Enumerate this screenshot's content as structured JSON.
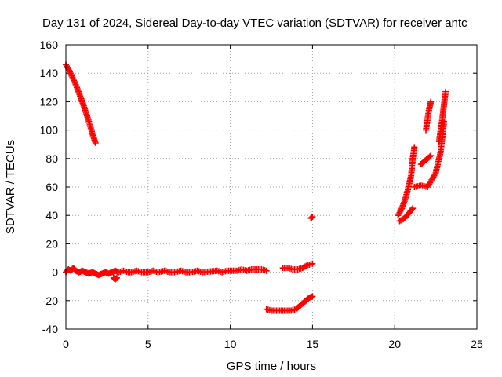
{
  "chart_data": {
    "type": "scatter",
    "title": "Day 131 of 2024, Sidereal Day-to-day VTEC variation (SDTVAR) for receiver antc",
    "xlabel": "GPS time / hours",
    "ylabel": "SDTVAR / TECUs",
    "xlim": [
      0,
      25
    ],
    "ylim": [
      -40,
      160
    ],
    "x_ticks": [
      "0",
      "5",
      "10",
      "15",
      "20",
      "25"
    ],
    "y_ticks": [
      "-40",
      "-20",
      "0",
      "20",
      "40",
      "60",
      "80",
      "100",
      "120",
      "140",
      "160"
    ],
    "grid": true,
    "marker": "plus",
    "color": "#ff0000",
    "series": [
      {
        "segments": [
          {
            "x": [
              0.0,
              0.2,
              0.4,
              0.6,
              0.8,
              1.0,
              1.2,
              1.4,
              1.6,
              1.8
            ],
            "y": [
              146,
              142,
              137,
              132,
              126,
              120,
              113,
              106,
              98,
              91
            ]
          },
          {
            "x": [
              0.0,
              0.15,
              0.3,
              0.45,
              0.6,
              0.8,
              1.0,
              1.2,
              1.4,
              1.6,
              1.8,
              2.0,
              2.2,
              2.4,
              2.6,
              2.8,
              3.0,
              3.2,
              3.5,
              3.8,
              4.0,
              4.3,
              4.6,
              5.0,
              5.3,
              5.6,
              6.0,
              6.3,
              6.6,
              7.0,
              7.3,
              7.6,
              8.0,
              8.3,
              9.2,
              9.5,
              9.8,
              10.1,
              10.4,
              10.7,
              11.0,
              11.3,
              11.6,
              11.9,
              12.2
            ],
            "y": [
              0,
              2,
              1,
              3,
              1,
              0,
              1,
              0,
              -1,
              0,
              -1,
              -2,
              -1,
              0,
              -1,
              0,
              1,
              0,
              1,
              0,
              0,
              1,
              0,
              0,
              1,
              0,
              1,
              0,
              0,
              1,
              0,
              0,
              1,
              0,
              1,
              0,
              1,
              1,
              1,
              2,
              1,
              2,
              2,
              2,
              1
            ]
          },
          {
            "x": [
              2.9,
              3.0,
              3.1
            ],
            "y": [
              -4,
              -5,
              -4
            ]
          },
          {
            "x": [
              12.2,
              12.5,
              12.8,
              13.1,
              13.4,
              13.7,
              14.0,
              14.2,
              14.4,
              14.6,
              14.8,
              15.0
            ],
            "y": [
              -26,
              -27,
              -27,
              -27,
              -27,
              -27,
              -26,
              -24,
              -22,
              -20,
              -18,
              -17
            ]
          },
          {
            "x": [
              13.2,
              13.5,
              13.8,
              14.1,
              14.4,
              14.7,
              15.0
            ],
            "y": [
              3,
              3,
              2,
              2,
              3,
              5,
              6
            ]
          },
          {
            "x": [
              14.9,
              15.0
            ],
            "y": [
              38,
              39
            ]
          },
          {
            "x": [
              20.2,
              20.4,
              20.6,
              20.8,
              21.0,
              21.1,
              21.2
            ],
            "y": [
              40,
              44,
              50,
              58,
              68,
              80,
              88
            ]
          },
          {
            "x": [
              20.3,
              20.6,
              20.9,
              21.1
            ],
            "y": [
              36,
              38,
              42,
              45
            ]
          },
          {
            "x": [
              21.2,
              21.6,
              22.0,
              22.5,
              22.8,
              23.0
            ],
            "y": [
              60,
              61,
              60,
              70,
              85,
              106
            ]
          },
          {
            "x": [
              21.6,
              21.8,
              22.0,
              22.2
            ],
            "y": [
              76,
              78,
              80,
              82
            ]
          },
          {
            "x": [
              21.9,
              22.0,
              22.1,
              22.2
            ],
            "y": [
              100,
              108,
              115,
              120
            ]
          },
          {
            "x": [
              22.7,
              22.8,
              22.9,
              23.0,
              23.1
            ],
            "y": [
              92,
              100,
              108,
              118,
              127
            ]
          }
        ]
      }
    ]
  }
}
